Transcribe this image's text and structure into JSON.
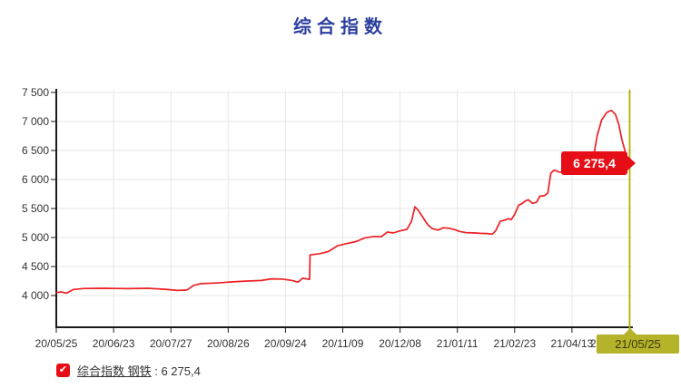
{
  "title": "综合指数",
  "chart_data": {
    "type": "line",
    "title": "综合指数",
    "series": [
      {
        "name": "综合指数 钢铁",
        "color": "#ed2024",
        "points": [
          [
            0.0,
            4050
          ],
          [
            0.08,
            4062
          ],
          [
            0.18,
            4040
          ],
          [
            0.3,
            4105
          ],
          [
            0.5,
            4122
          ],
          [
            0.85,
            4125
          ],
          [
            1.25,
            4118
          ],
          [
            1.6,
            4125
          ],
          [
            1.9,
            4108
          ],
          [
            2.12,
            4088
          ],
          [
            2.28,
            4095
          ],
          [
            2.4,
            4175
          ],
          [
            2.52,
            4205
          ],
          [
            2.8,
            4215
          ],
          [
            3.05,
            4235
          ],
          [
            3.3,
            4248
          ],
          [
            3.58,
            4260
          ],
          [
            3.75,
            4288
          ],
          [
            3.93,
            4285
          ],
          [
            4.1,
            4262
          ],
          [
            4.22,
            4232
          ],
          [
            4.3,
            4298
          ],
          [
            4.37,
            4288
          ],
          [
            4.42,
            4278
          ],
          [
            4.43,
            4700
          ],
          [
            4.6,
            4722
          ],
          [
            4.75,
            4760
          ],
          [
            4.91,
            4858
          ],
          [
            5.07,
            4895
          ],
          [
            5.23,
            4930
          ],
          [
            5.39,
            4995
          ],
          [
            5.55,
            5018
          ],
          [
            5.67,
            5012
          ],
          [
            5.78,
            5095
          ],
          [
            5.88,
            5078
          ],
          [
            5.99,
            5112
          ],
          [
            6.12,
            5140
          ],
          [
            6.2,
            5280
          ],
          [
            6.26,
            5530
          ],
          [
            6.32,
            5465
          ],
          [
            6.4,
            5345
          ],
          [
            6.48,
            5225
          ],
          [
            6.56,
            5155
          ],
          [
            6.66,
            5128
          ],
          [
            6.76,
            5168
          ],
          [
            6.86,
            5158
          ],
          [
            6.95,
            5138
          ],
          [
            7.04,
            5105
          ],
          [
            7.15,
            5085
          ],
          [
            7.27,
            5080
          ],
          [
            7.4,
            5072
          ],
          [
            7.52,
            5068
          ],
          [
            7.61,
            5058
          ],
          [
            7.67,
            5118
          ],
          [
            7.75,
            5282
          ],
          [
            7.83,
            5300
          ],
          [
            7.89,
            5325
          ],
          [
            7.94,
            5308
          ],
          [
            8.0,
            5398
          ],
          [
            8.07,
            5558
          ],
          [
            8.13,
            5585
          ],
          [
            8.19,
            5632
          ],
          [
            8.24,
            5650
          ],
          [
            8.31,
            5590
          ],
          [
            8.38,
            5605
          ],
          [
            8.44,
            5712
          ],
          [
            8.52,
            5720
          ],
          [
            8.58,
            5768
          ],
          [
            8.63,
            6108
          ],
          [
            8.69,
            6162
          ],
          [
            8.77,
            6130
          ],
          [
            8.88,
            6122
          ],
          [
            9.0,
            6152
          ],
          [
            9.13,
            6185
          ],
          [
            9.25,
            6158
          ],
          [
            9.36,
            6290
          ],
          [
            9.44,
            6758
          ],
          [
            9.52,
            7030
          ],
          [
            9.61,
            7158
          ],
          [
            9.69,
            7190
          ],
          [
            9.76,
            7118
          ],
          [
            9.82,
            6940
          ],
          [
            9.87,
            6692
          ],
          [
            9.93,
            6478
          ],
          [
            9.98,
            6330
          ],
          [
            10.01,
            6275.4
          ]
        ]
      }
    ],
    "x_tick_labels": [
      "20/05/25",
      "20/06/23",
      "20/07/27",
      "20/08/26",
      "20/09/24",
      "20/11/09",
      "20/12/08",
      "21/01/11",
      "21/02/23",
      "21/04/13"
    ],
    "covered_x_label_fragment": "2",
    "cursor_x_label": "21/05/25",
    "y_tick_labels": [
      "7 500",
      "7 000",
      "6 500",
      "6 000",
      "5 500",
      "5 000",
      "4 500",
      "4 000"
    ],
    "y_tick_values": [
      7500,
      7000,
      6500,
      6000,
      5500,
      5000,
      4500,
      4000
    ],
    "ylim": [
      3450,
      7550
    ],
    "grid": true,
    "legend_position": "bottom-left",
    "last_value": 6275.4,
    "last_value_label": "6 275,4",
    "colors": {
      "line": "#ed2024",
      "grid": "#e7e7e7",
      "axis": "#1a1a1a",
      "cursor": "#b3b000",
      "tick_text": "#333333"
    }
  },
  "callout": {
    "label": "6 275,4",
    "color": "#e60d17"
  },
  "cursor": {
    "date_label": "21/05/25",
    "badge_color": "#b5b32a",
    "line_color": "#b3b000"
  },
  "legend": {
    "checkmark": "✔",
    "label": "综合指数 钢铁",
    "separator": " : ",
    "value": "6 275,4"
  }
}
